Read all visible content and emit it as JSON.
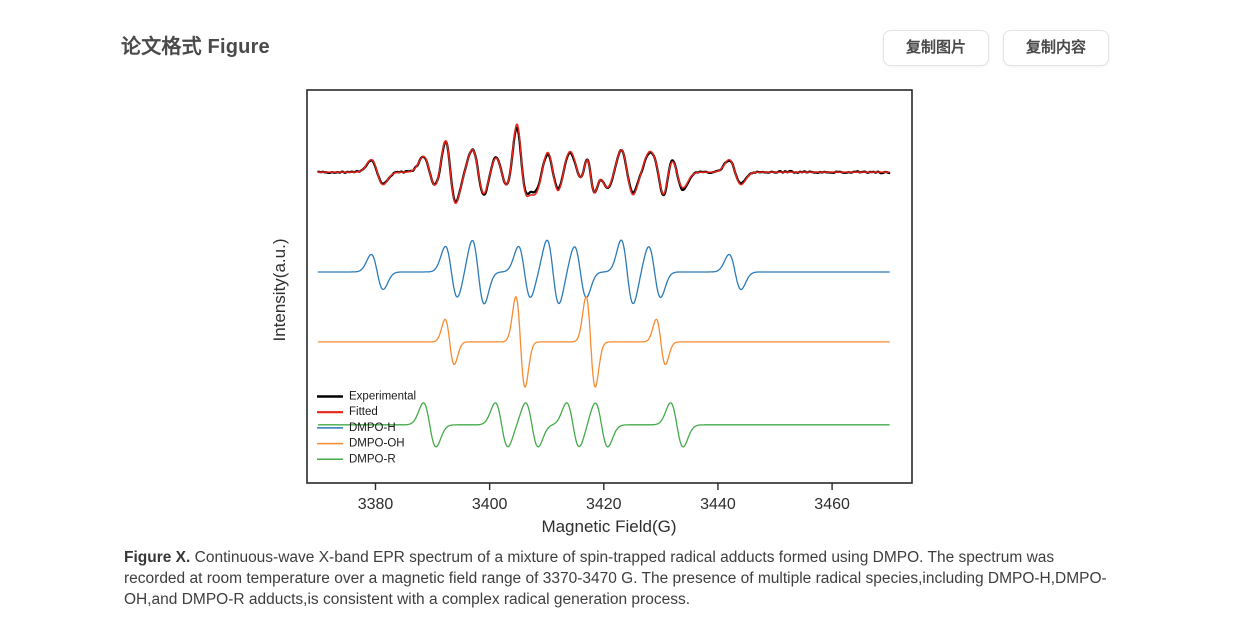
{
  "header": {
    "title": "论文格式 Figure",
    "copy_image_label": "复制图片",
    "copy_content_label": "复制内容"
  },
  "caption": {
    "label": "Figure X.",
    "text": "Continuous-wave X-band EPR spectrum of a mixture of spin-trapped radical adducts formed using DMPO. The spectrum was recorded at room temperature over a magnetic field range of 3370-3470 G. The presence of multiple radical species,including DMPO-H,DMPO-OH,and DMPO-R adducts,is consistent with a complex radical generation process."
  },
  "chart_data": {
    "type": "line",
    "title": "",
    "xlabel": "Magnetic Field(G)",
    "ylabel": "Intensity(a.u.)",
    "xlim": [
      3368,
      3474
    ],
    "x_data_range": [
      3370,
      3470
    ],
    "x_ticks": [
      3380,
      3400,
      3420,
      3440,
      3460
    ],
    "grid": false,
    "legend_position": "lower-left",
    "frame_color": "#2a2a2a",
    "series": [
      {
        "name": "Experimental",
        "role": "experimental",
        "color": "#000000",
        "line_width": 2.3,
        "legend_line_width": 2.6,
        "baseline_frac": 0.209,
        "amp_frac": 0.122,
        "noise_frac": 0.028,
        "amp_jitter": 0.14,
        "noise_seed": 42
      },
      {
        "name": "Fitted",
        "role": "fitted",
        "color": "#e8251a",
        "line_width": 1.5,
        "legend_line_width": 2.2,
        "baseline_frac": 0.209,
        "amp_frac": 0.122
      },
      {
        "name": "DMPO-H",
        "role": "component",
        "color": "#2b7bb9",
        "line_width": 1.3,
        "legend_line_width": 1.5,
        "baseline_frac": 0.463,
        "amp_frac": 0.081,
        "linewidth_g": 1.05,
        "lines": [
          [
            3380.3,
            0.55
          ],
          [
            3393.3,
            0.8
          ],
          [
            3398.0,
            1
          ],
          [
            3406.1,
            0.8
          ],
          [
            3411.1,
            1
          ],
          [
            3415.9,
            0.8
          ],
          [
            3424.1,
            1
          ],
          [
            3428.9,
            0.8
          ],
          [
            3443.0,
            0.55
          ]
        ]
      },
      {
        "name": "DMPO-OH",
        "role": "component",
        "color": "#f78b31",
        "line_width": 1.3,
        "legend_line_width": 1.5,
        "baseline_frac": 0.641,
        "amp_frac": 0.115,
        "linewidth_g": 0.8,
        "lines": [
          [
            3393.0,
            0.5
          ],
          [
            3405.4,
            1
          ],
          [
            3417.7,
            1
          ],
          [
            3430.0,
            0.5
          ]
        ]
      },
      {
        "name": "DMPO-R",
        "role": "component",
        "color": "#44ab49",
        "line_width": 1.3,
        "legend_line_width": 1.5,
        "baseline_frac": 0.852,
        "amp_frac": 0.056,
        "linewidth_g": 1.1,
        "lines": [
          [
            3389.5,
            1
          ],
          [
            3402.1,
            1
          ],
          [
            3407.4,
            1
          ],
          [
            3414.6,
            1
          ],
          [
            3419.6,
            1
          ],
          [
            3432.8,
            1
          ]
        ]
      }
    ]
  }
}
